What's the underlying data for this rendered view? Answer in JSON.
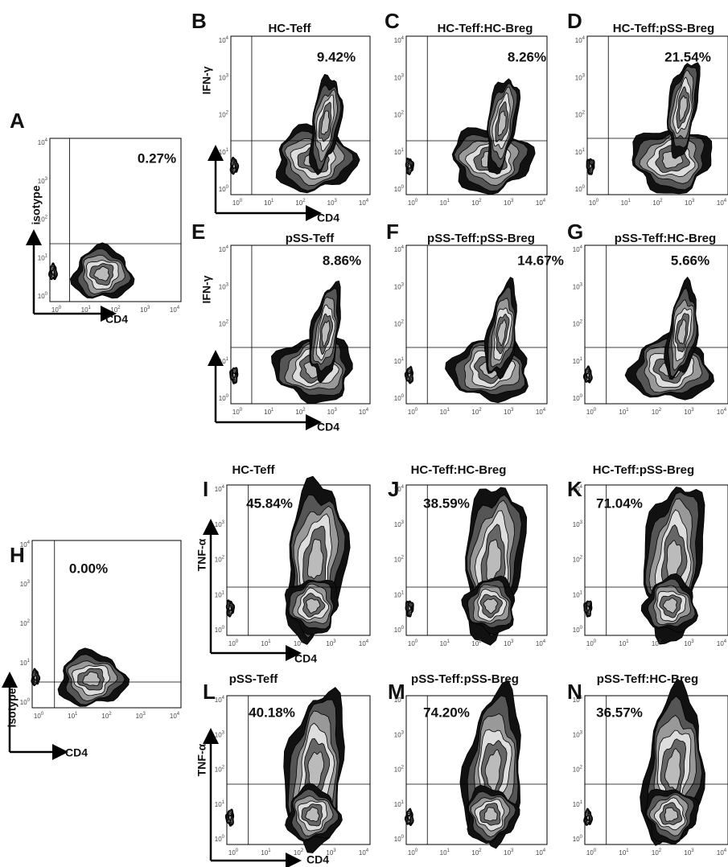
{
  "tick_base": "10",
  "tick_exponents": [
    "0",
    "1",
    "2",
    "3",
    "4"
  ],
  "panels": [
    {
      "letter": "A",
      "percent": "0.27%",
      "y_label": "isotype",
      "x_label": "CD4"
    },
    {
      "letter": "B",
      "title": "HC-Teff",
      "percent": "9.42%",
      "y_label": "IFN-γ",
      "x_label": "CD4"
    },
    {
      "letter": "C",
      "title": "HC-Teff:HC-Breg",
      "percent": "8.26%"
    },
    {
      "letter": "D",
      "title": "HC-Teff:pSS-Breg",
      "percent": "21.54%"
    },
    {
      "letter": "E",
      "title": "pSS-Teff",
      "percent": "8.86%",
      "y_label": "IFN-γ",
      "x_label": "CD4"
    },
    {
      "letter": "F",
      "title": "pSS-Teff:pSS-Breg",
      "percent": "14.67%"
    },
    {
      "letter": "G",
      "title": "pSS-Teff:HC-Breg",
      "percent": "5.66%"
    },
    {
      "letter": "H",
      "percent": "0.00%",
      "y_label": "isotype",
      "x_label": "CD4"
    },
    {
      "letter": "I",
      "title": "HC-Teff",
      "percent": "45.84%",
      "y_label": "TNF-α",
      "x_label": "CD4"
    },
    {
      "letter": "J",
      "title": "HC-Teff:HC-Breg",
      "percent": "38.59%"
    },
    {
      "letter": "K",
      "title": "HC-Teff:pSS-Breg",
      "percent": "71.04%"
    },
    {
      "letter": "L",
      "title": "pSS-Teff",
      "percent": "40.18%",
      "y_label": "TNF-α",
      "x_label": "CD4"
    },
    {
      "letter": "M",
      "title": "pSS-Teff:pSS-Breg",
      "percent": "74.20%"
    },
    {
      "letter": "N",
      "title": "pSS-Teff:HC-Breg",
      "percent": "36.57%"
    }
  ]
}
